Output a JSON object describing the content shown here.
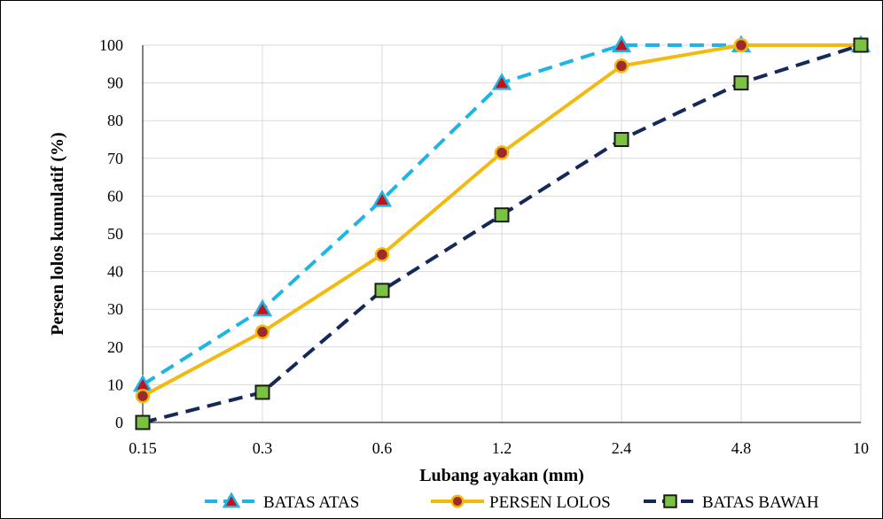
{
  "chart_data": {
    "type": "line",
    "title": "",
    "xlabel": "Lubang ayakan (mm)",
    "ylabel": "Persen lolos kumulatif (%)",
    "categories": [
      "0.15",
      "0.3",
      "0.6",
      "1.2",
      "2.4",
      "4.8",
      "10"
    ],
    "ylim": [
      0,
      100
    ],
    "yticks": [
      0,
      10,
      20,
      30,
      40,
      50,
      60,
      70,
      80,
      90,
      100
    ],
    "grid": true,
    "legend_position": "bottom",
    "series": [
      {
        "name": "BATAS ATAS",
        "values": [
          10,
          30,
          59,
          90,
          100,
          100,
          100
        ],
        "line_color": "#1fb4e6",
        "line_style": "dashed",
        "marker": "triangle",
        "marker_fill": "#c0141c",
        "marker_edge": "#1fb4e6"
      },
      {
        "name": "PERSEN LOLOS",
        "values": [
          7,
          24,
          44.5,
          71.5,
          94.5,
          100,
          100
        ],
        "line_color": "#f2b90f",
        "line_style": "solid",
        "marker": "circle",
        "marker_fill": "#9e2a2b",
        "marker_edge": "#f2b90f"
      },
      {
        "name": "BATAS BAWAH",
        "values": [
          0,
          8,
          35,
          55,
          75,
          90,
          100
        ],
        "line_color": "#14285a",
        "line_style": "dashed",
        "marker": "square",
        "marker_fill": "#7cc242",
        "marker_edge": "#1a1a1a"
      }
    ]
  }
}
